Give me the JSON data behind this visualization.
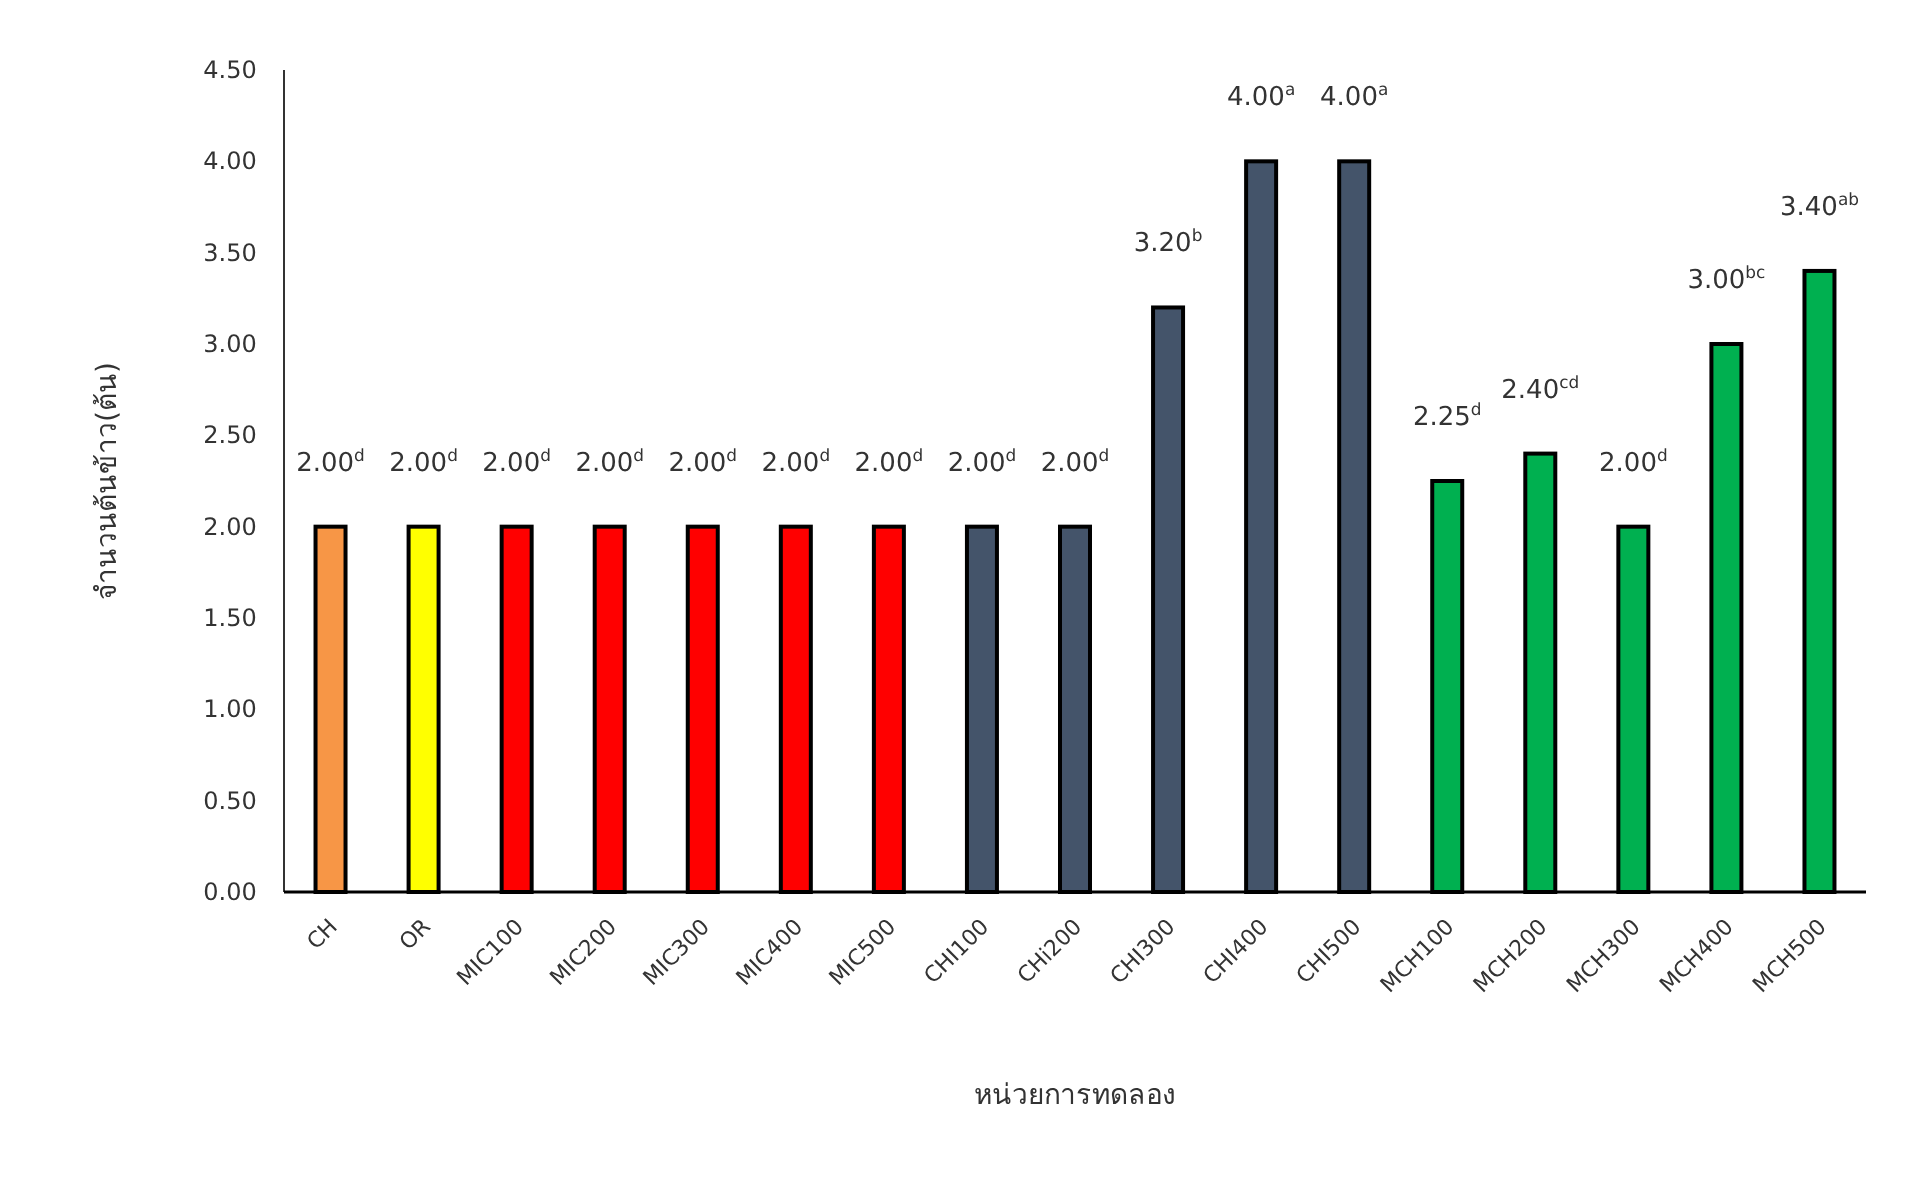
{
  "chart_data": {
    "type": "bar",
    "xlabel": "หน่วยการทดลอง",
    "ylabel": "จำนวนต้นข้าว(ต้น)",
    "categories": [
      "CH",
      "OR",
      "MIC100",
      "MIC200",
      "MIC300",
      "MIC400",
      "MIC500",
      "CHI100",
      "CHi200",
      "CHI300",
      "CHI400",
      "CHI500",
      "MCH100",
      "MCH200",
      "MCH300",
      "MCH400",
      "MCH500"
    ],
    "values": [
      2.0,
      2.0,
      2.0,
      2.0,
      2.0,
      2.0,
      2.0,
      2.0,
      2.0,
      3.2,
      4.0,
      4.0,
      2.25,
      2.4,
      2.0,
      3.0,
      3.4
    ],
    "colors": [
      "#f79646",
      "#ffff00",
      "#ff0000",
      "#ff0000",
      "#ff0000",
      "#ff0000",
      "#ff0000",
      "#44546a",
      "#44546a",
      "#44546a",
      "#44546a",
      "#44546a",
      "#00b050",
      "#00b050",
      "#00b050",
      "#00b050",
      "#00b050"
    ],
    "value_labels": [
      "2.00$^{d}$",
      "2.00$^{d}$",
      "2.00$^{d}$",
      "2.00$^{d}$",
      "2.00$^{d}$",
      "2.00$^{d}$",
      "2.00$^{d}$",
      "2.00$^{d}$",
      "2.00$^{d}$",
      "3.20$^{b}$",
      "4.00$^{a}$",
      "4.00$^{a}$",
      "2.25$^{d}$",
      "2.40$^{cd}$",
      "2.00$^{d}$",
      "3.00$^{bc}$",
      "3.40$^{ab}$"
    ],
    "ylim": [
      0,
      4.5
    ],
    "yticks": [
      {
        "value": 0,
        "label": "0.00"
      },
      {
        "value": 0.5,
        "label": "0.50"
      },
      {
        "value": 1,
        "label": "1.00"
      },
      {
        "value": 1.5,
        "label": "1.50"
      },
      {
        "value": 2,
        "label": "2.00"
      },
      {
        "value": 2.5,
        "label": "2.50"
      },
      {
        "value": 3,
        "label": "3.00"
      },
      {
        "value": 3.5,
        "label": "3.50"
      },
      {
        "value": 4,
        "label": "4.00"
      },
      {
        "value": 4.5,
        "label": "4.50"
      }
    ],
    "grid": false
  }
}
